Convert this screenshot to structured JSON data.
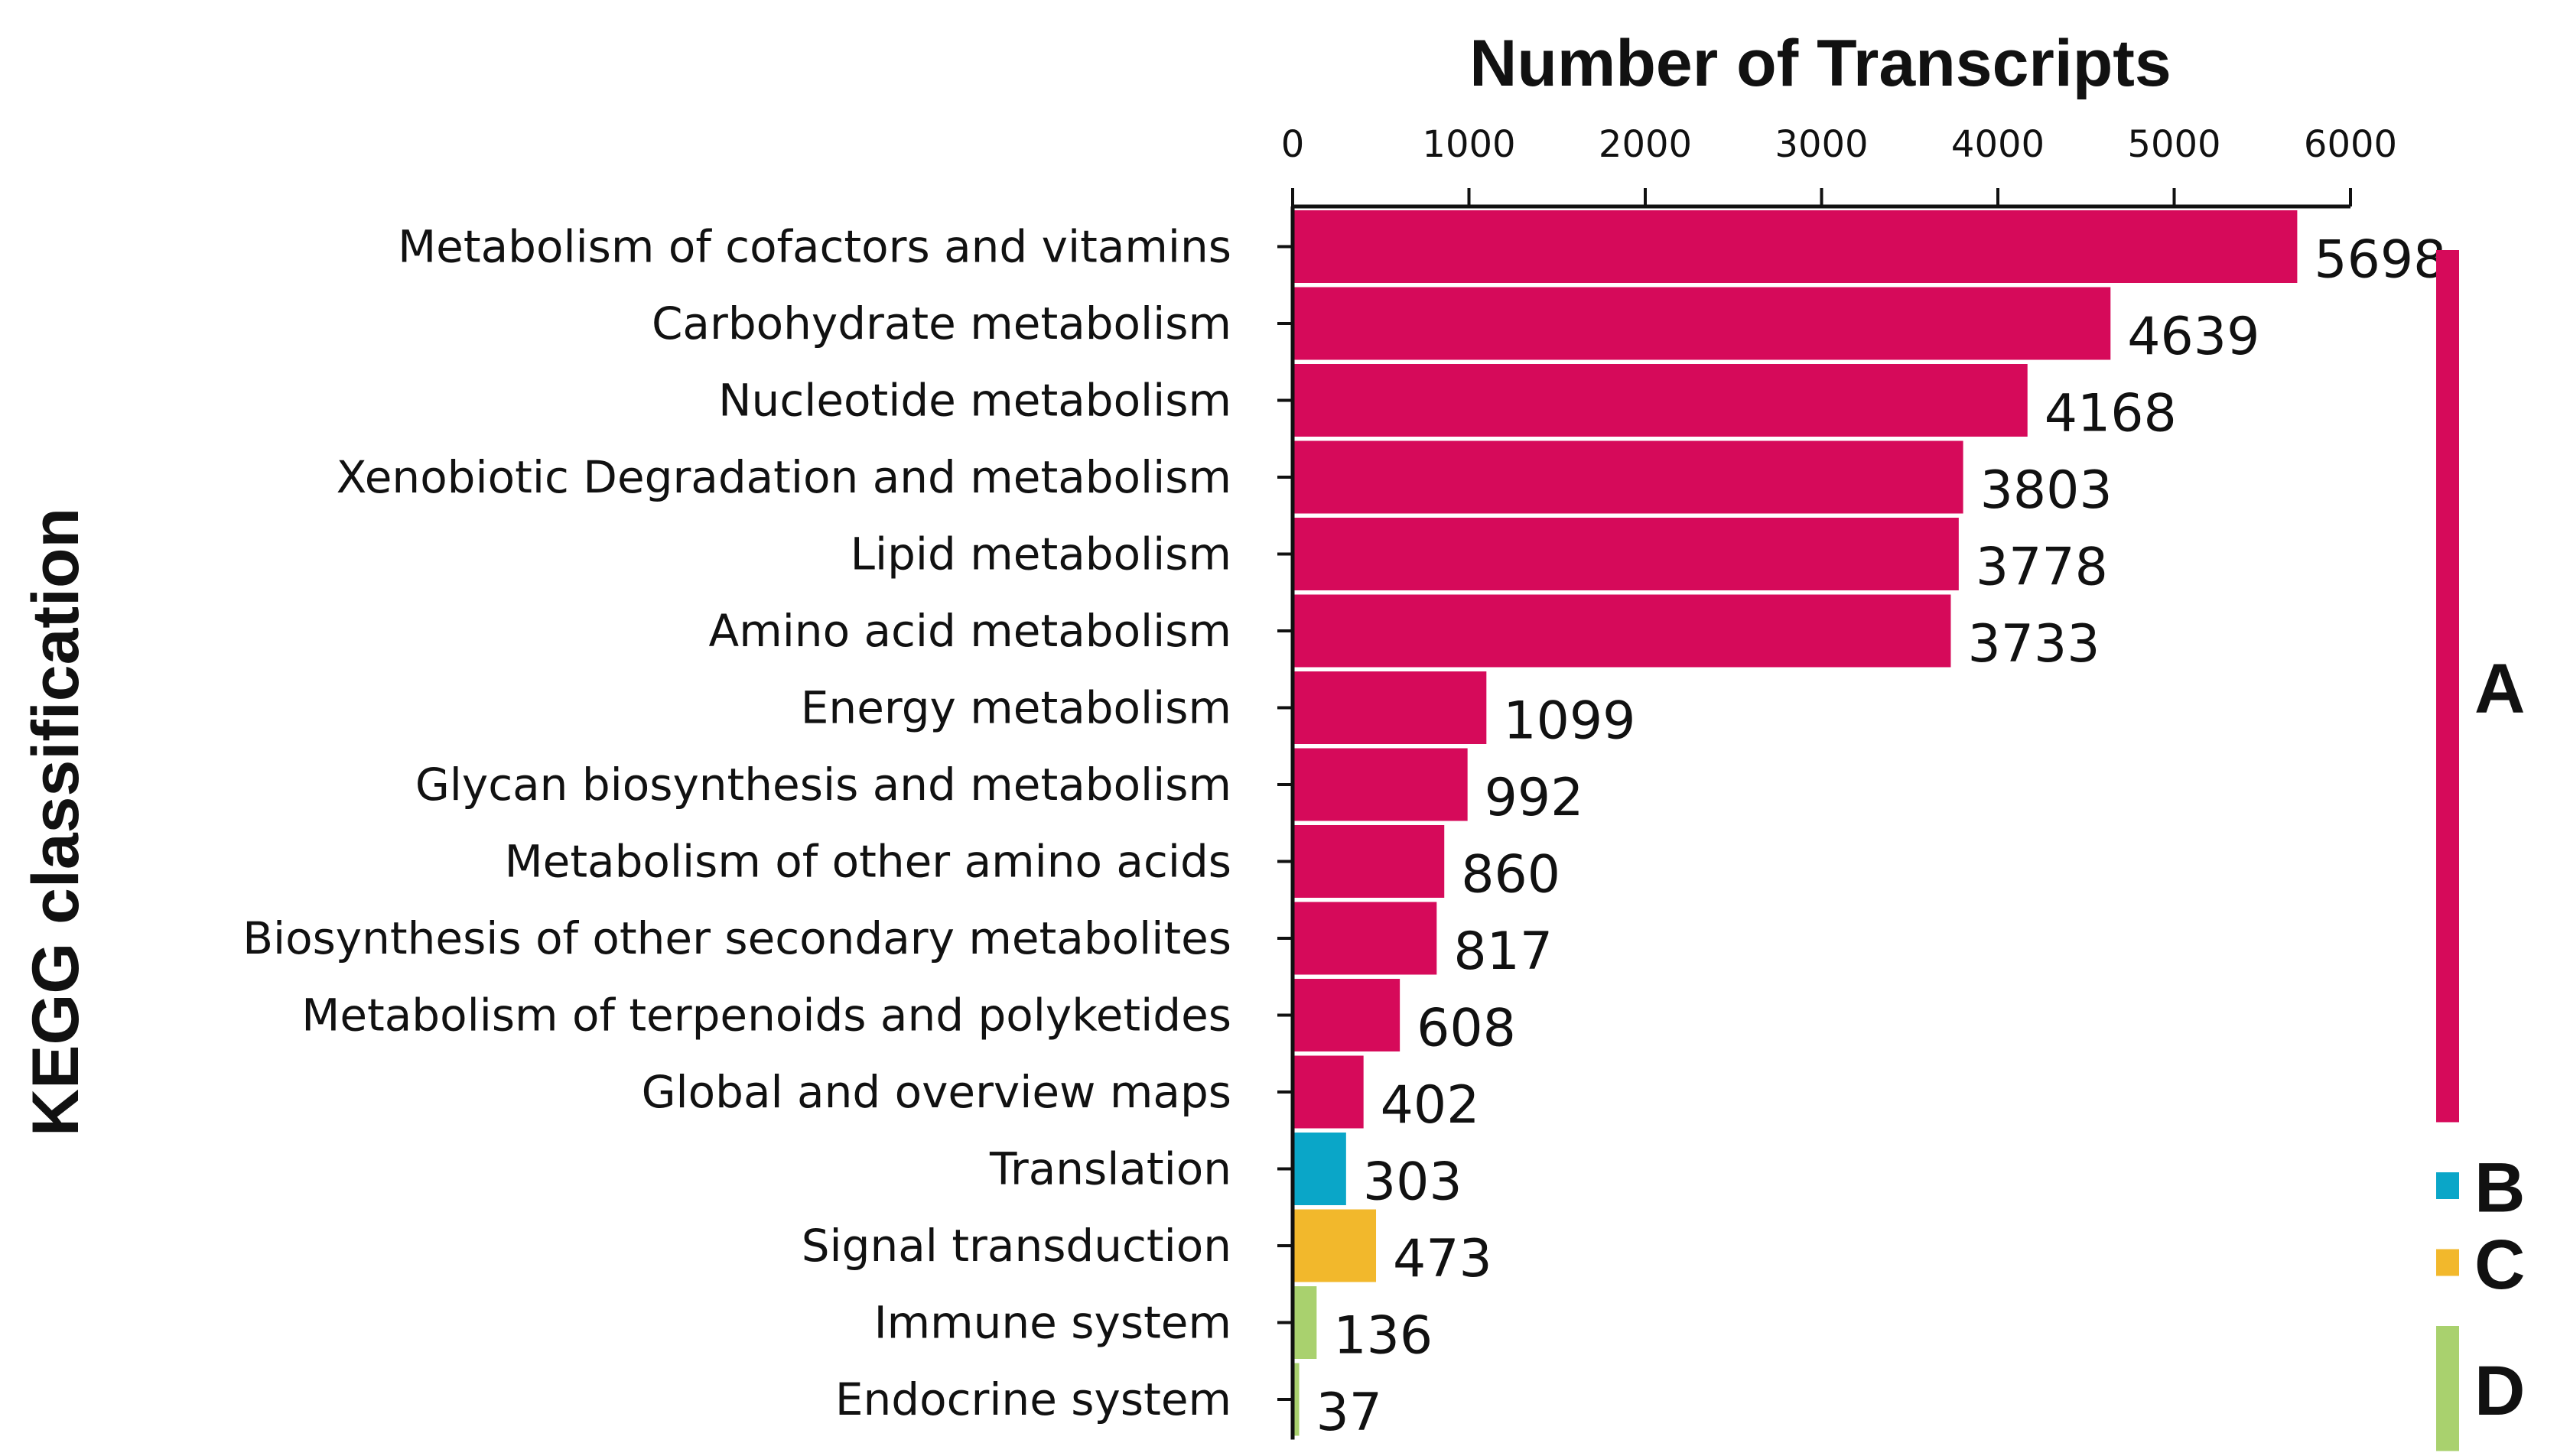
{
  "chart_data": {
    "type": "bar",
    "orientation": "horizontal",
    "title": "",
    "xlabel": "Number of Transcripts",
    "ylabel": "KEGG classification",
    "xlim": [
      0,
      6000
    ],
    "xticks": [
      "0",
      "1000",
      "2000",
      "3000",
      "4000",
      "5000",
      "6000"
    ],
    "grid": false,
    "categories": [
      "Metabolism of cofactors and vitamins",
      "Carbohydrate metabolism",
      "Nucleotide metabolism",
      "Xenobiotic Degradation and metabolism",
      "Lipid metabolism",
      "Amino acid metabolism",
      "Energy metabolism",
      "Glycan biosynthesis and metabolism",
      "Metabolism of other amino acids",
      "Biosynthesis of other secondary metabolites",
      "Metabolism of terpenoids and polyketides",
      "Global and overview maps",
      "Translation",
      "Signal transduction",
      "Immune system",
      "Endocrine system"
    ],
    "values": [
      5698,
      4639,
      4168,
      3803,
      3778,
      3733,
      1099,
      992,
      860,
      817,
      608,
      402,
      303,
      473,
      136,
      37
    ],
    "value_labels": [
      "5698",
      "4639",
      "4168",
      "3803",
      "3778",
      "3733",
      "1099",
      "992",
      "860",
      "817",
      "608",
      "402",
      "303",
      "473",
      "136",
      "37"
    ],
    "groups": [
      {
        "label": "A",
        "color": "#d60a5a",
        "start": 0,
        "end": 11
      },
      {
        "label": "B",
        "color": "#0aa6c8",
        "start": 12,
        "end": 12
      },
      {
        "label": "C",
        "color": "#f2b82c",
        "start": 13,
        "end": 13
      },
      {
        "label": "D",
        "color": "#a9d16e",
        "start": 14,
        "end": 15
      }
    ]
  }
}
